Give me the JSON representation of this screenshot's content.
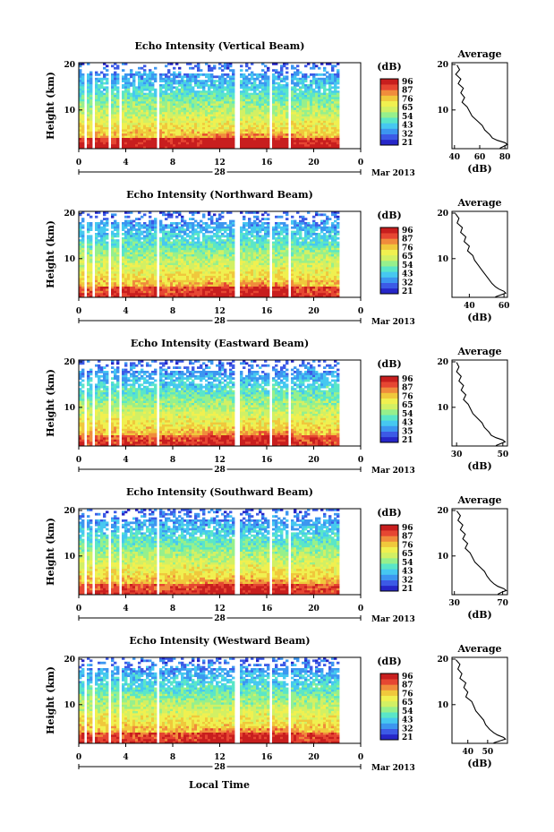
{
  "colorscale": [
    "#2626c8",
    "#3c5ae6",
    "#3c96f0",
    "#46c8f0",
    "#5ae6c8",
    "#96f08c",
    "#d2f064",
    "#f0f050",
    "#f0c83c",
    "#f08c3c",
    "#e64632",
    "#c81e1e"
  ],
  "labels": {
    "ylabel": "Height (km)",
    "unit": "(dB)",
    "avg_title": "Average",
    "avg_xlabel": "(dB)",
    "date_day": "28",
    "date_month": "Mar 2013",
    "xlabel": "Local Time"
  },
  "chart_data": [
    {
      "type": "heatmap",
      "title": "Echo Intensity (Vertical Beam)",
      "x_ticks": [
        "0",
        "4",
        "8",
        "12",
        "16",
        "20",
        "0"
      ],
      "y_ticks": [
        "20",
        "10"
      ],
      "colorbar_ticks": [
        "96",
        "87",
        "76",
        "65",
        "54",
        "43",
        "32",
        "21"
      ],
      "avg_profile": {
        "type": "line",
        "title": "Average",
        "x_ticks": [
          "40",
          "60",
          "80"
        ],
        "xlim": [
          38,
          82
        ],
        "y_ticks": [
          "20",
          "10"
        ],
        "ylim": [
          1.5,
          20
        ],
        "x": [
          42,
          44,
          41,
          45,
          43,
          47,
          45,
          48,
          46,
          50,
          52,
          54,
          58,
          62,
          64,
          68,
          70,
          74,
          80,
          82,
          79,
          76
        ],
        "y": [
          19.5,
          18.5,
          17.5,
          16.5,
          15.5,
          14.5,
          13.5,
          12.5,
          11.5,
          10.5,
          9.5,
          8.5,
          7.5,
          6.5,
          5.5,
          4.5,
          3.8,
          3.3,
          2.8,
          2.4,
          2.0,
          1.6
        ]
      }
    },
    {
      "type": "heatmap",
      "title": "Echo Intensity (Northward Beam)",
      "x_ticks": [
        "0",
        "4",
        "8",
        "12",
        "16",
        "20",
        "0"
      ],
      "y_ticks": [
        "20",
        "10"
      ],
      "colorbar_ticks": [
        "96",
        "87",
        "76",
        "65",
        "54",
        "43",
        "32",
        "21"
      ],
      "avg_profile": {
        "type": "line",
        "title": "Average",
        "x_ticks": [
          "40",
          "60"
        ],
        "xlim": [
          30,
          62
        ],
        "y_ticks": [
          "20",
          "10"
        ],
        "ylim": [
          1.5,
          20
        ],
        "x": [
          32,
          34,
          33,
          36,
          35,
          38,
          37,
          40,
          39,
          42,
          43,
          45,
          47,
          49,
          51,
          53,
          55,
          57,
          60,
          61,
          58,
          55
        ],
        "y": [
          19.5,
          18.5,
          17.5,
          16.5,
          15.5,
          14.5,
          13.5,
          12.5,
          11.5,
          10.5,
          9.5,
          8.5,
          7.5,
          6.5,
          5.5,
          4.5,
          3.8,
          3.3,
          2.8,
          2.4,
          2.0,
          1.6
        ]
      }
    },
    {
      "type": "heatmap",
      "title": "Echo Intensity (Eastward Beam)",
      "x_ticks": [
        "0",
        "4",
        "8",
        "12",
        "16",
        "20",
        "0"
      ],
      "y_ticks": [
        "20",
        "10"
      ],
      "colorbar_ticks": [
        "96",
        "87",
        "76",
        "65",
        "54",
        "43",
        "35",
        "21"
      ],
      "avg_profile": {
        "type": "line",
        "title": "Average",
        "x_ticks": [
          "30",
          "50"
        ],
        "xlim": [
          28,
          52
        ],
        "y_ticks": [
          "20",
          "10"
        ],
        "ylim": [
          1.5,
          20
        ],
        "x": [
          30,
          31,
          30,
          32,
          31,
          33,
          32,
          34,
          33,
          35,
          36,
          37,
          39,
          41,
          42,
          44,
          45,
          47,
          50,
          51,
          49,
          47
        ],
        "y": [
          19.5,
          18.5,
          17.5,
          16.5,
          15.5,
          14.5,
          13.5,
          12.5,
          11.5,
          10.5,
          9.5,
          8.5,
          7.5,
          6.5,
          5.5,
          4.5,
          3.8,
          3.3,
          2.8,
          2.4,
          2.0,
          1.6
        ]
      }
    },
    {
      "type": "heatmap",
      "title": "Echo Intensity (Southward Beam)",
      "x_ticks": [
        "0",
        "4",
        "8",
        "12",
        "16",
        "20",
        "0"
      ],
      "y_ticks": [
        "20",
        "10"
      ],
      "colorbar_ticks": [
        "96",
        "87",
        "76",
        "65",
        "54",
        "43",
        "32",
        "21"
      ],
      "avg_profile": {
        "type": "line",
        "title": "Average",
        "x_ticks": [
          "30",
          "70"
        ],
        "xlim": [
          28,
          74
        ],
        "y_ticks": [
          "20",
          "10"
        ],
        "ylim": [
          1.5,
          20
        ],
        "x": [
          32,
          35,
          33,
          37,
          35,
          39,
          37,
          41,
          39,
          43,
          45,
          47,
          51,
          55,
          57,
          60,
          63,
          66,
          71,
          73,
          69,
          66
        ],
        "y": [
          19.5,
          18.5,
          17.5,
          16.5,
          15.5,
          14.5,
          13.5,
          12.5,
          11.5,
          10.5,
          9.5,
          8.5,
          7.5,
          6.5,
          5.5,
          4.5,
          3.8,
          3.3,
          2.8,
          2.4,
          2.0,
          1.6
        ]
      }
    },
    {
      "type": "heatmap",
      "title": "Echo Intensity (Westward Beam)",
      "x_ticks": [
        "0",
        "4",
        "8",
        "12",
        "16",
        "20",
        "0"
      ],
      "y_ticks": [
        "20",
        "10"
      ],
      "colorbar_ticks": [
        "96",
        "87",
        "76",
        "65",
        "54",
        "43",
        "32",
        "21"
      ],
      "avg_profile": {
        "type": "line",
        "title": "Average",
        "x_ticks": [
          "40",
          "50"
        ],
        "xlim": [
          32,
          60
        ],
        "y_ticks": [
          "20",
          "10"
        ],
        "ylim": [
          1.5,
          20
        ],
        "x": [
          34,
          36,
          35,
          37,
          36,
          39,
          38,
          40,
          39,
          42,
          43,
          44,
          46,
          48,
          49,
          51,
          53,
          55,
          58,
          59,
          56,
          53
        ],
        "y": [
          19.5,
          18.5,
          17.5,
          16.5,
          15.5,
          14.5,
          13.5,
          12.5,
          11.5,
          10.5,
          9.5,
          8.5,
          7.5,
          6.5,
          5.5,
          4.5,
          3.8,
          3.3,
          2.8,
          2.4,
          2.0,
          1.6
        ]
      }
    }
  ]
}
